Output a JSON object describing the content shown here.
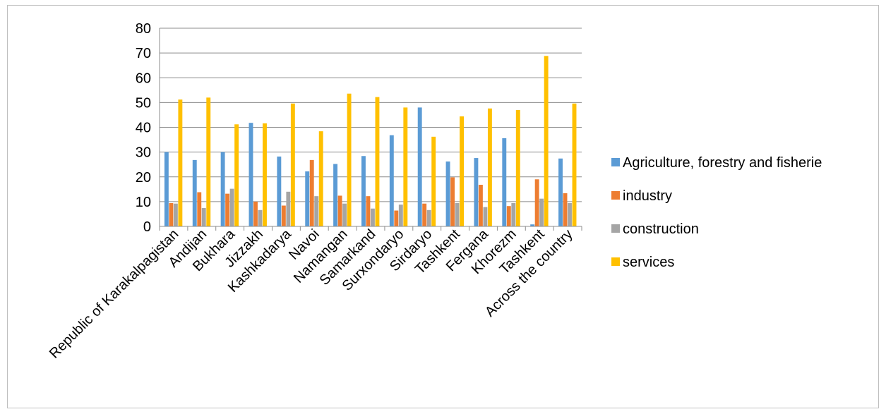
{
  "chart_data": {
    "type": "bar",
    "categories": [
      "Republic of Karakalpagistan",
      "Andijan",
      "Bukhara",
      "Jizzakh",
      "Kashkadarya",
      "Navoi",
      "Namangan",
      "Samarkand",
      "Surxondaryo",
      "Sirdaryo",
      "Tashkent",
      "Fergana",
      "Khorezm",
      "Tashkent",
      "Across the country"
    ],
    "series": [
      {
        "name": "Agriculture, forestry and fisherie",
        "color": "#5b9bd5",
        "values": [
          30,
          26.8,
          30,
          41.8,
          28.2,
          22.2,
          25.2,
          28.4,
          36.8,
          48,
          26.2,
          27.6,
          35.6,
          0.8,
          27.4
        ]
      },
      {
        "name": "industry",
        "color": "#ed7d31",
        "values": [
          9.4,
          13.8,
          13.2,
          10,
          8.4,
          26.8,
          12.4,
          12.2,
          6.4,
          9.2,
          19.8,
          16.8,
          8.2,
          19,
          13.4
        ]
      },
      {
        "name": "construction",
        "color": "#a5a5a5",
        "values": [
          9.2,
          7.4,
          15.2,
          6.6,
          14,
          12.2,
          9.2,
          7.2,
          8.8,
          6.6,
          9.4,
          7.8,
          9.4,
          11.2,
          9.4
        ]
      },
      {
        "name": "services",
        "color": "#ffc000",
        "values": [
          51.2,
          52,
          41.2,
          41.6,
          49.6,
          38.4,
          53.6,
          52.2,
          48,
          36.2,
          44.4,
          47.6,
          47,
          68.8,
          49.6
        ]
      }
    ],
    "ylim": [
      0,
      80
    ],
    "yticks": [
      0,
      10,
      20,
      30,
      40,
      50,
      60,
      70,
      80
    ],
    "grid": true,
    "legend_position": "right"
  }
}
